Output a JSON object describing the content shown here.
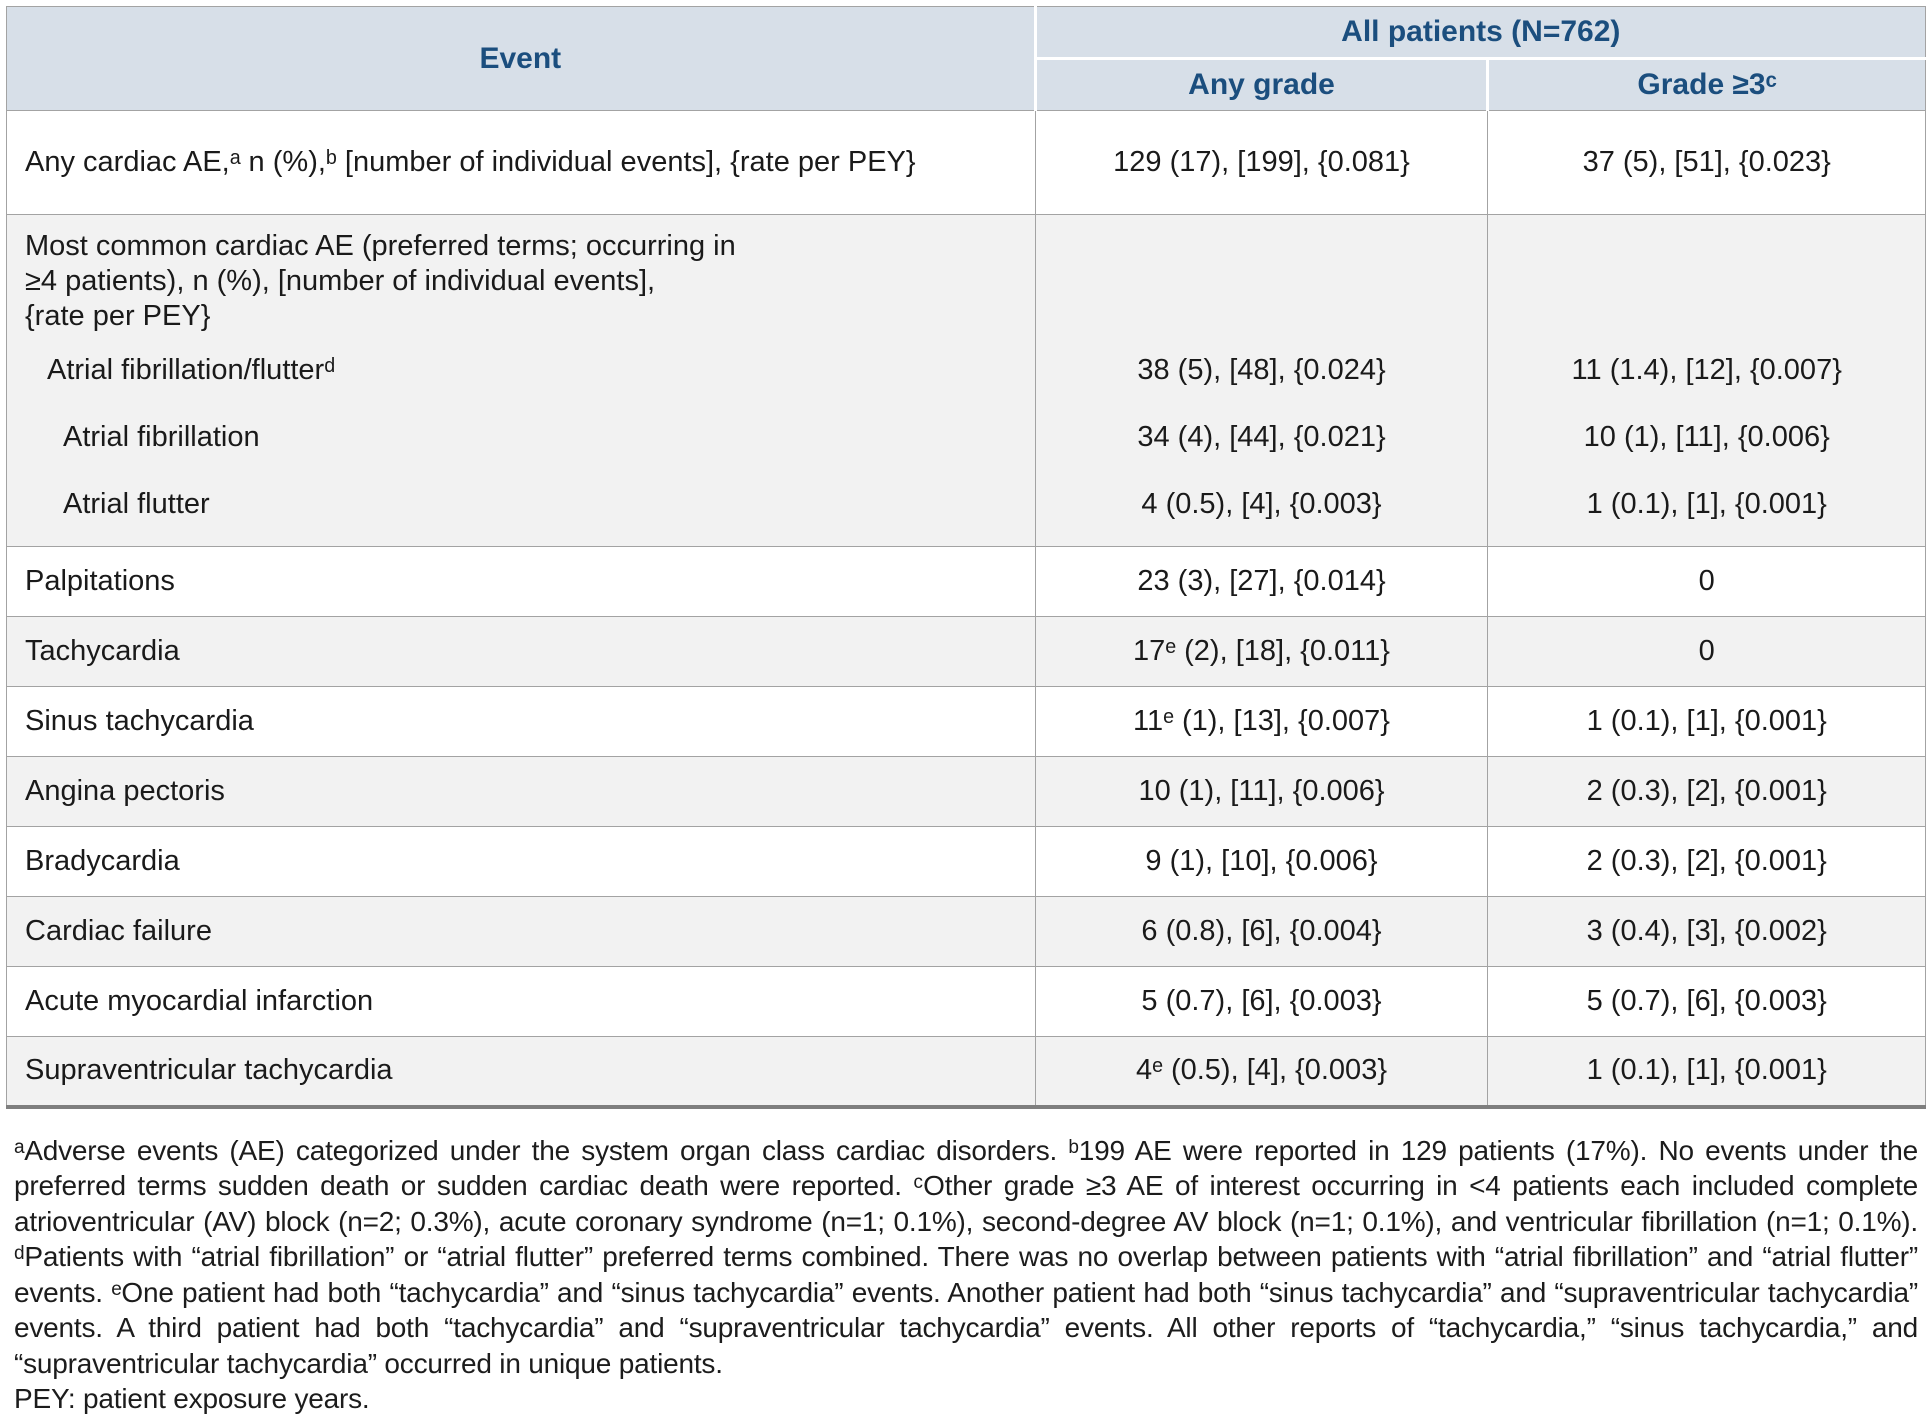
{
  "colors": {
    "header_bg": "#d7dfe8",
    "header_text": "#1b4e7e",
    "row_alt": "#f2f2f2",
    "row_white": "#ffffff",
    "border": "#a3a3a3",
    "border_dark": "#7f7f7f",
    "text": "#1a1a1a"
  },
  "table": {
    "header": {
      "event": "Event",
      "all_patients": "All patients (N=762)",
      "any_grade": "Any grade",
      "grade_ge3": "Grade ≥3ᶜ"
    },
    "any_cardiac_row": {
      "label": "Any cardiac AE,ᵃ n (%),ᵇ [number of individual events], {rate per PEY}",
      "any_grade": "129 (17), [199], {0.081}",
      "grade_ge3": "37 (5), [51], {0.023}"
    },
    "block": {
      "heading_lines": [
        "Most common cardiac AE (preferred terms; occurring in",
        "≥4 patients), n (%), [number of individual events],",
        "{rate per PEY}"
      ],
      "items": [
        {
          "label": "Atrial fibrillation/flutterᵈ",
          "any_grade": "38 (5), [48], {0.024}",
          "grade_ge3": "11 (1.4), [12], {0.007}"
        },
        {
          "label": "Atrial fibrillation",
          "any_grade": "34 (4), [44], {0.021}",
          "grade_ge3": "10 (1), [11], {0.006}"
        },
        {
          "label": "Atrial flutter",
          "any_grade": "4 (0.5), [4], {0.003}",
          "grade_ge3": "1 (0.1), [1], {0.001}"
        }
      ]
    },
    "simple_rows": [
      {
        "label": "Palpitations",
        "any_grade": "23 (3), [27], {0.014}",
        "grade_ge3": "0"
      },
      {
        "label": "Tachycardia",
        "any_grade": "17ᵉ (2), [18], {0.011}",
        "grade_ge3": "0"
      },
      {
        "label": "Sinus tachycardia",
        "any_grade": "11ᵉ (1), [13], {0.007}",
        "grade_ge3": "1 (0.1), [1], {0.001}"
      },
      {
        "label": "Angina pectoris",
        "any_grade": "10 (1), [11], {0.006}",
        "grade_ge3": "2 (0.3), [2], {0.001}"
      },
      {
        "label": "Bradycardia",
        "any_grade": "9 (1), [10], {0.006}",
        "grade_ge3": "2 (0.3), [2], {0.001}"
      },
      {
        "label": "Cardiac failure",
        "any_grade": "6 (0.8), [6], {0.004}",
        "grade_ge3": "3 (0.4), [3], {0.002}"
      },
      {
        "label": "Acute myocardial infarction",
        "any_grade": "5 (0.7), [6], {0.003}",
        "grade_ge3": "5 (0.7), [6], {0.003}"
      },
      {
        "label": "Supraventricular tachycardia",
        "any_grade": "4ᵉ (0.5), [4], {0.003}",
        "grade_ge3": "1 (0.1), [1], {0.001}"
      }
    ]
  },
  "footnotes": {
    "main": "ᵃAdverse events (AE) categorized under the system organ class cardiac disorders. ᵇ199 AE were reported in 129 patients (17%). No events under the preferred terms sudden death or sudden cardiac death were reported. ᶜOther grade ≥3 AE of interest occurring in <4 patients each included complete atrioventricular (AV) block (n=2; 0.3%), acute coronary syndrome (n=1; 0.1%), second-degree AV block (n=1; 0.1%), and ventricular fibrillation (n=1; 0.1%). ᵈPatients with “atrial fibrillation” or “atrial flutter” preferred terms combined. There was no overlap between patients with “atrial fibrillation” and “atrial flutter” events. ᵉOne patient had both “tachycardia” and “sinus tachycardia” events. Another patient had both “sinus tachycardia” and “supraventricular tachycardia” events. A third patient had both “tachycardia” and “supraventricular tachycardia” events. All other reports of “tachycardia,” “sinus tachycardia,” and “supraventricular tachycardia” occurred in unique patients.",
    "pey": "PEY: patient exposure years."
  }
}
